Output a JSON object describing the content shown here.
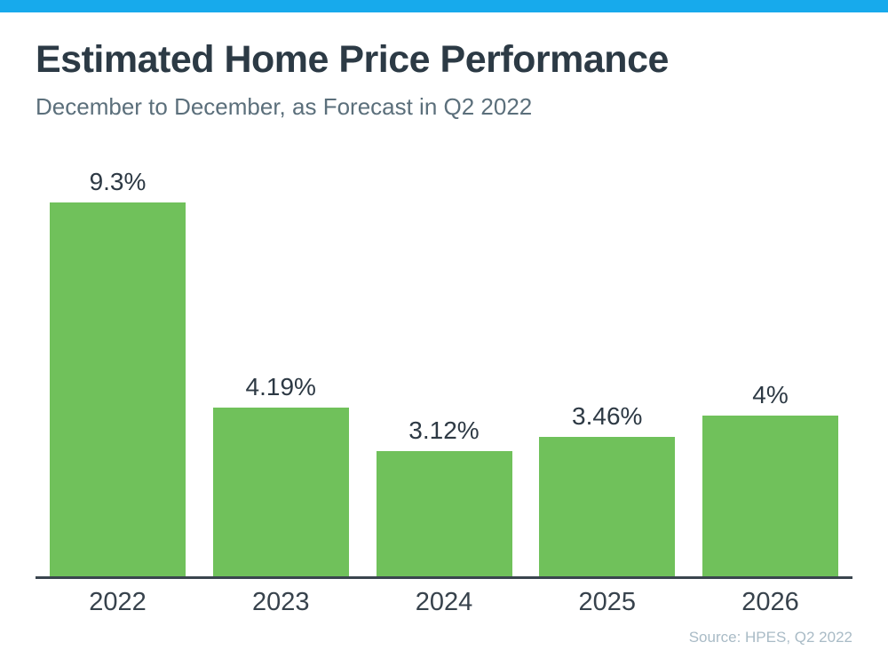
{
  "page": {
    "title": "Estimated Home Price Performance",
    "subtitle": "December to December, as Forecast in Q2 2022",
    "source_note": "Source: HPES, Q2 2022"
  },
  "colors": {
    "accent_strip": "#17AAEC",
    "bar_fill": "#70C15B",
    "axis_line": "#3A454E",
    "title_text": "#2C3A45",
    "subtitle_text": "#5B6F7B",
    "value_label_text": "#2D3944",
    "year_label_text": "#37424C",
    "source_text": "#A9BBC6",
    "background": "#FFFFFF"
  },
  "chart_data": {
    "type": "bar",
    "categories": [
      "2022",
      "2023",
      "2024",
      "2025",
      "2026"
    ],
    "values": [
      9.3,
      4.19,
      3.12,
      3.46,
      4
    ],
    "value_labels": [
      "9.3%",
      "4.19%",
      "3.12%",
      "3.46%",
      "4%"
    ],
    "title": "Estimated Home Price Performance",
    "subtitle": "December to December, as Forecast in Q2 2022",
    "xlabel": "",
    "ylabel": "",
    "ylim": [
      0,
      10.4
    ],
    "grid": false,
    "legend": false,
    "source": "Source: HPES, Q2 2022"
  }
}
